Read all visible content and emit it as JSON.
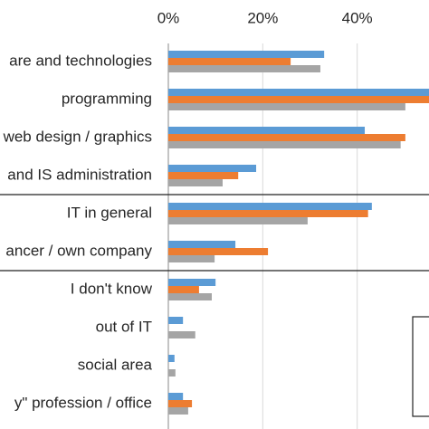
{
  "chart_data": {
    "type": "barh",
    "categories": [
      "are and technologies",
      "programming",
      "web design / graphics",
      "and IS administration",
      "IT in general",
      "ancer / own company",
      "I don't know",
      "out of IT",
      "social area",
      "y\" profession / office"
    ],
    "series": [
      {
        "color": "#5b9bd5",
        "values": [
          33,
          57,
          41.6,
          18.6,
          43.1,
          14.2,
          10,
          3.1,
          1.3,
          3.1
        ]
      },
      {
        "color": "#ed7d31",
        "values": [
          25.9,
          58,
          50.2,
          14.8,
          42.3,
          21.1,
          6.5,
          0,
          0,
          5
        ]
      },
      {
        "color": "#a5a5a5",
        "values": [
          32.2,
          50.2,
          49.2,
          11.5,
          29.5,
          9.8,
          9.2,
          5.7,
          1.5,
          4.2
        ]
      }
    ],
    "xlim": [
      0,
      60
    ],
    "xticks": [
      {
        "value": 0,
        "label": "0%"
      },
      {
        "value": 20,
        "label": "20%"
      },
      {
        "value": 40,
        "label": "40%"
      }
    ],
    "grid": true
  }
}
